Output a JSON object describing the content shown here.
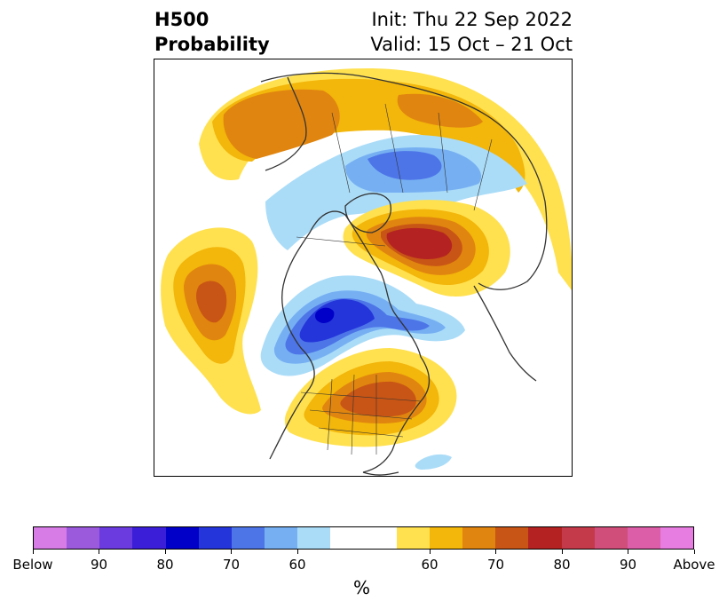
{
  "title": {
    "field": "H500",
    "product": "Probability",
    "init": "Init: Thu 22 Sep 2022",
    "valid": "Valid: 15 Oct – 21 Oct"
  },
  "colorbar": {
    "unit": "%",
    "colors": [
      "#d77be6",
      "#9b59dc",
      "#6b3be0",
      "#3a1ed8",
      "#0000c8",
      "#2435da",
      "#4d75e8",
      "#76b0f2",
      "#aadcf8",
      "#ffffff",
      "#ffffff",
      "#ffe14f",
      "#f3b60a",
      "#e0850f",
      "#c85515",
      "#b42321",
      "#c43a4a",
      "#cf4f7a",
      "#dc5ea8",
      "#e77de0"
    ],
    "tick_labels": [
      "Below",
      "90",
      "80",
      "70",
      "60",
      "60",
      "70",
      "80",
      "90",
      "Above"
    ]
  },
  "map": {
    "projection": "polar-stereographic",
    "palette": {
      "yellow": "#ffe14f",
      "gold": "#f3b60a",
      "orange": "#e0850f",
      "burnt": "#c85515",
      "red": "#b42321",
      "lightblue": "#aadcf8",
      "skyblue": "#76b0f2",
      "blue": "#4d75e8",
      "royal": "#2435da",
      "navy": "#0000c8",
      "coast": "#333333"
    }
  }
}
